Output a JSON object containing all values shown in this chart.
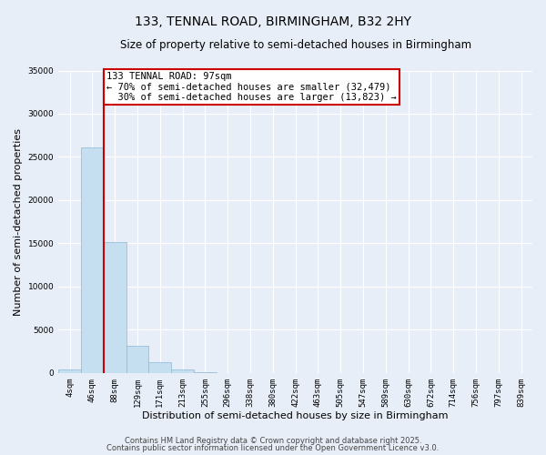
{
  "title": "133, TENNAL ROAD, BIRMINGHAM, B32 2HY",
  "subtitle": "Size of property relative to semi-detached houses in Birmingham",
  "xlabel": "Distribution of semi-detached houses by size in Birmingham",
  "ylabel": "Number of semi-detached properties",
  "bin_labels": [
    "4sqm",
    "46sqm",
    "88sqm",
    "129sqm",
    "171sqm",
    "213sqm",
    "255sqm",
    "296sqm",
    "338sqm",
    "380sqm",
    "422sqm",
    "463sqm",
    "505sqm",
    "547sqm",
    "589sqm",
    "630sqm",
    "672sqm",
    "714sqm",
    "756sqm",
    "797sqm",
    "839sqm"
  ],
  "bar_values": [
    400,
    26100,
    15200,
    3100,
    1250,
    400,
    100,
    0,
    0,
    0,
    0,
    0,
    0,
    0,
    0,
    0,
    0,
    0,
    0,
    0,
    0
  ],
  "bar_color": "#c5dff0",
  "bar_edge_color": "#8ab8d4",
  "vline_color": "#cc0000",
  "vline_x_index": 2,
  "annotation_text": "133 TENNAL ROAD: 97sqm\n← 70% of semi-detached houses are smaller (32,479)\n  30% of semi-detached houses are larger (13,823) →",
  "annotation_box_edgecolor": "#cc0000",
  "ylim": [
    0,
    35000
  ],
  "yticks": [
    0,
    5000,
    10000,
    15000,
    20000,
    25000,
    30000,
    35000
  ],
  "background_color": "#e8eef8",
  "grid_color": "#ffffff",
  "footer_line1": "Contains HM Land Registry data © Crown copyright and database right 2025.",
  "footer_line2": "Contains public sector information licensed under the Open Government Licence v3.0.",
  "title_fontsize": 10,
  "subtitle_fontsize": 8.5,
  "axis_label_fontsize": 8,
  "tick_fontsize": 6.5,
  "annotation_fontsize": 7.5,
  "footer_fontsize": 6
}
